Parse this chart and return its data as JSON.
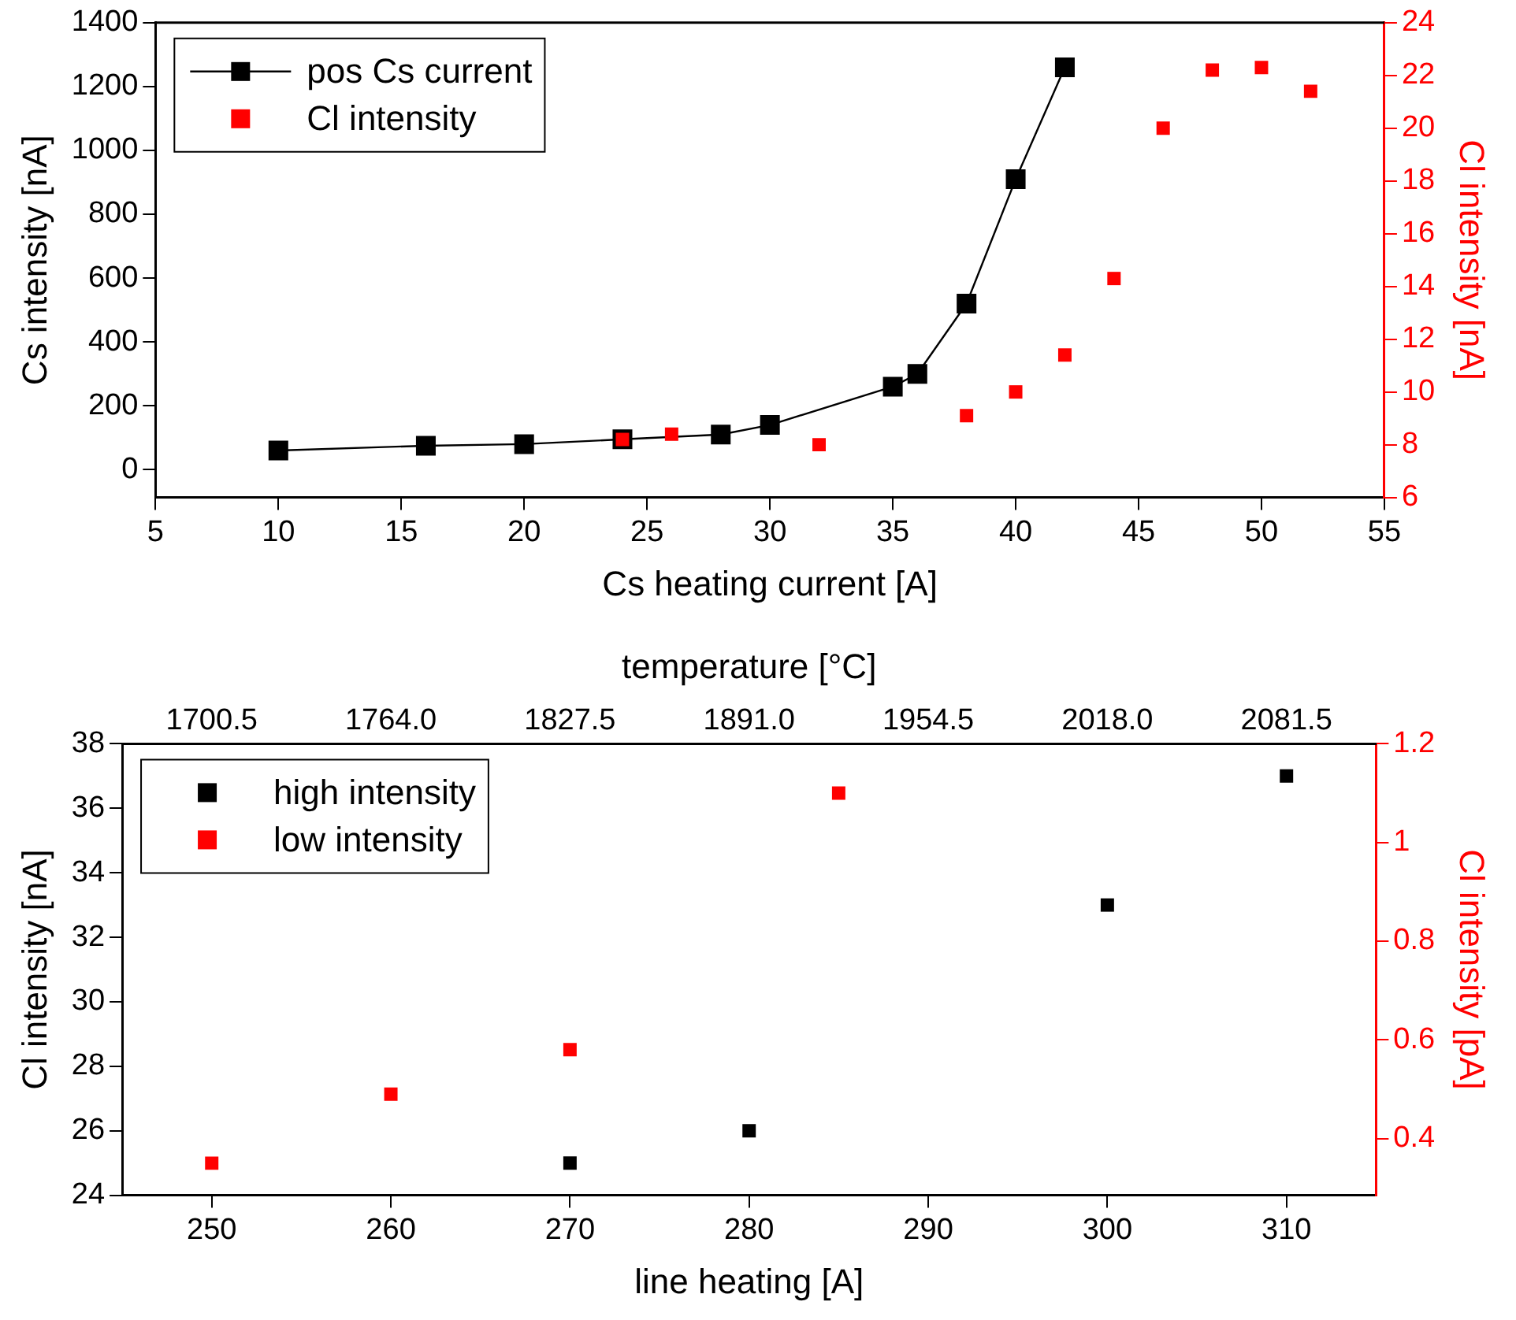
{
  "chart_data": [
    {
      "type": "scatter",
      "xlabel": "Cs heating current [A]",
      "ylabel": "Cs intensity [nA]",
      "y2label": "Cl intensity [nA]",
      "xlim": [
        5,
        55
      ],
      "xticks": [
        5,
        10,
        15,
        20,
        25,
        30,
        35,
        40,
        45,
        50,
        55
      ],
      "ylim": [
        -87,
        1400
      ],
      "yticks": [
        0,
        200,
        400,
        600,
        800,
        1000,
        1200,
        1400
      ],
      "y2lim": [
        6,
        24
      ],
      "y2ticks": [
        6,
        8,
        10,
        12,
        14,
        16,
        18,
        20,
        22,
        24
      ],
      "grid": false,
      "legend": "top left",
      "marker": "square",
      "series": [
        {
          "name": "pos Cs current",
          "type": "line",
          "color": "#000000",
          "x": [
            10,
            16,
            20,
            24,
            28,
            30,
            35,
            36,
            38,
            40,
            42
          ],
          "values": [
            60,
            75,
            80,
            95,
            110,
            140,
            260,
            300,
            520,
            910,
            1260
          ]
        },
        {
          "name": "Cl intensity",
          "type": "scatter",
          "color": "#ff0000",
          "axis": "y2",
          "x": [
            24,
            26,
            32,
            38,
            40,
            42,
            44,
            46,
            48,
            50,
            52
          ],
          "values": [
            8.2,
            8.4,
            8.0,
            9.1,
            10.0,
            11.4,
            14.3,
            20.0,
            22.2,
            22.3,
            21.4
          ]
        }
      ]
    },
    {
      "type": "scatter",
      "xlabel": "line heating [A]",
      "x2label": "temperature [°C]",
      "ylabel": "Cl intensity [nA]",
      "y2label": "Cl intensity [pA]",
      "xlim": [
        245,
        315
      ],
      "xticks": [
        250,
        260,
        270,
        280,
        290,
        300,
        310
      ],
      "x2lim": [
        1668.75,
        2113.25
      ],
      "x2ticks": [
        1700.5,
        {
          "value": 1764,
          "label": "1764.0"
        },
        1827.5,
        {
          "value": 1891,
          "label": "1891.0"
        },
        1954.5,
        {
          "value": 2018,
          "label": "2018.0"
        },
        2081.5
      ],
      "ylim": [
        24,
        38
      ],
      "yticks": [
        24,
        26,
        28,
        30,
        32,
        34,
        36,
        38
      ],
      "y2lim": [
        0.285,
        1.2
      ],
      "y2ticks": [
        0.4,
        0.6,
        0.8,
        1.0,
        1.2
      ],
      "grid": false,
      "legend": "top left",
      "marker": "square",
      "series": [
        {
          "name": "high intensity",
          "type": "scatter",
          "color": "#000000",
          "x": [
            270,
            280,
            300,
            310
          ],
          "values": [
            25,
            26,
            33,
            37
          ]
        },
        {
          "name": "low intensity",
          "type": "scatter",
          "color": "#ff0000",
          "axis": "y2",
          "x": [
            250,
            260,
            270,
            285
          ],
          "values": [
            0.35,
            0.49,
            0.58,
            1.1
          ]
        }
      ]
    }
  ]
}
